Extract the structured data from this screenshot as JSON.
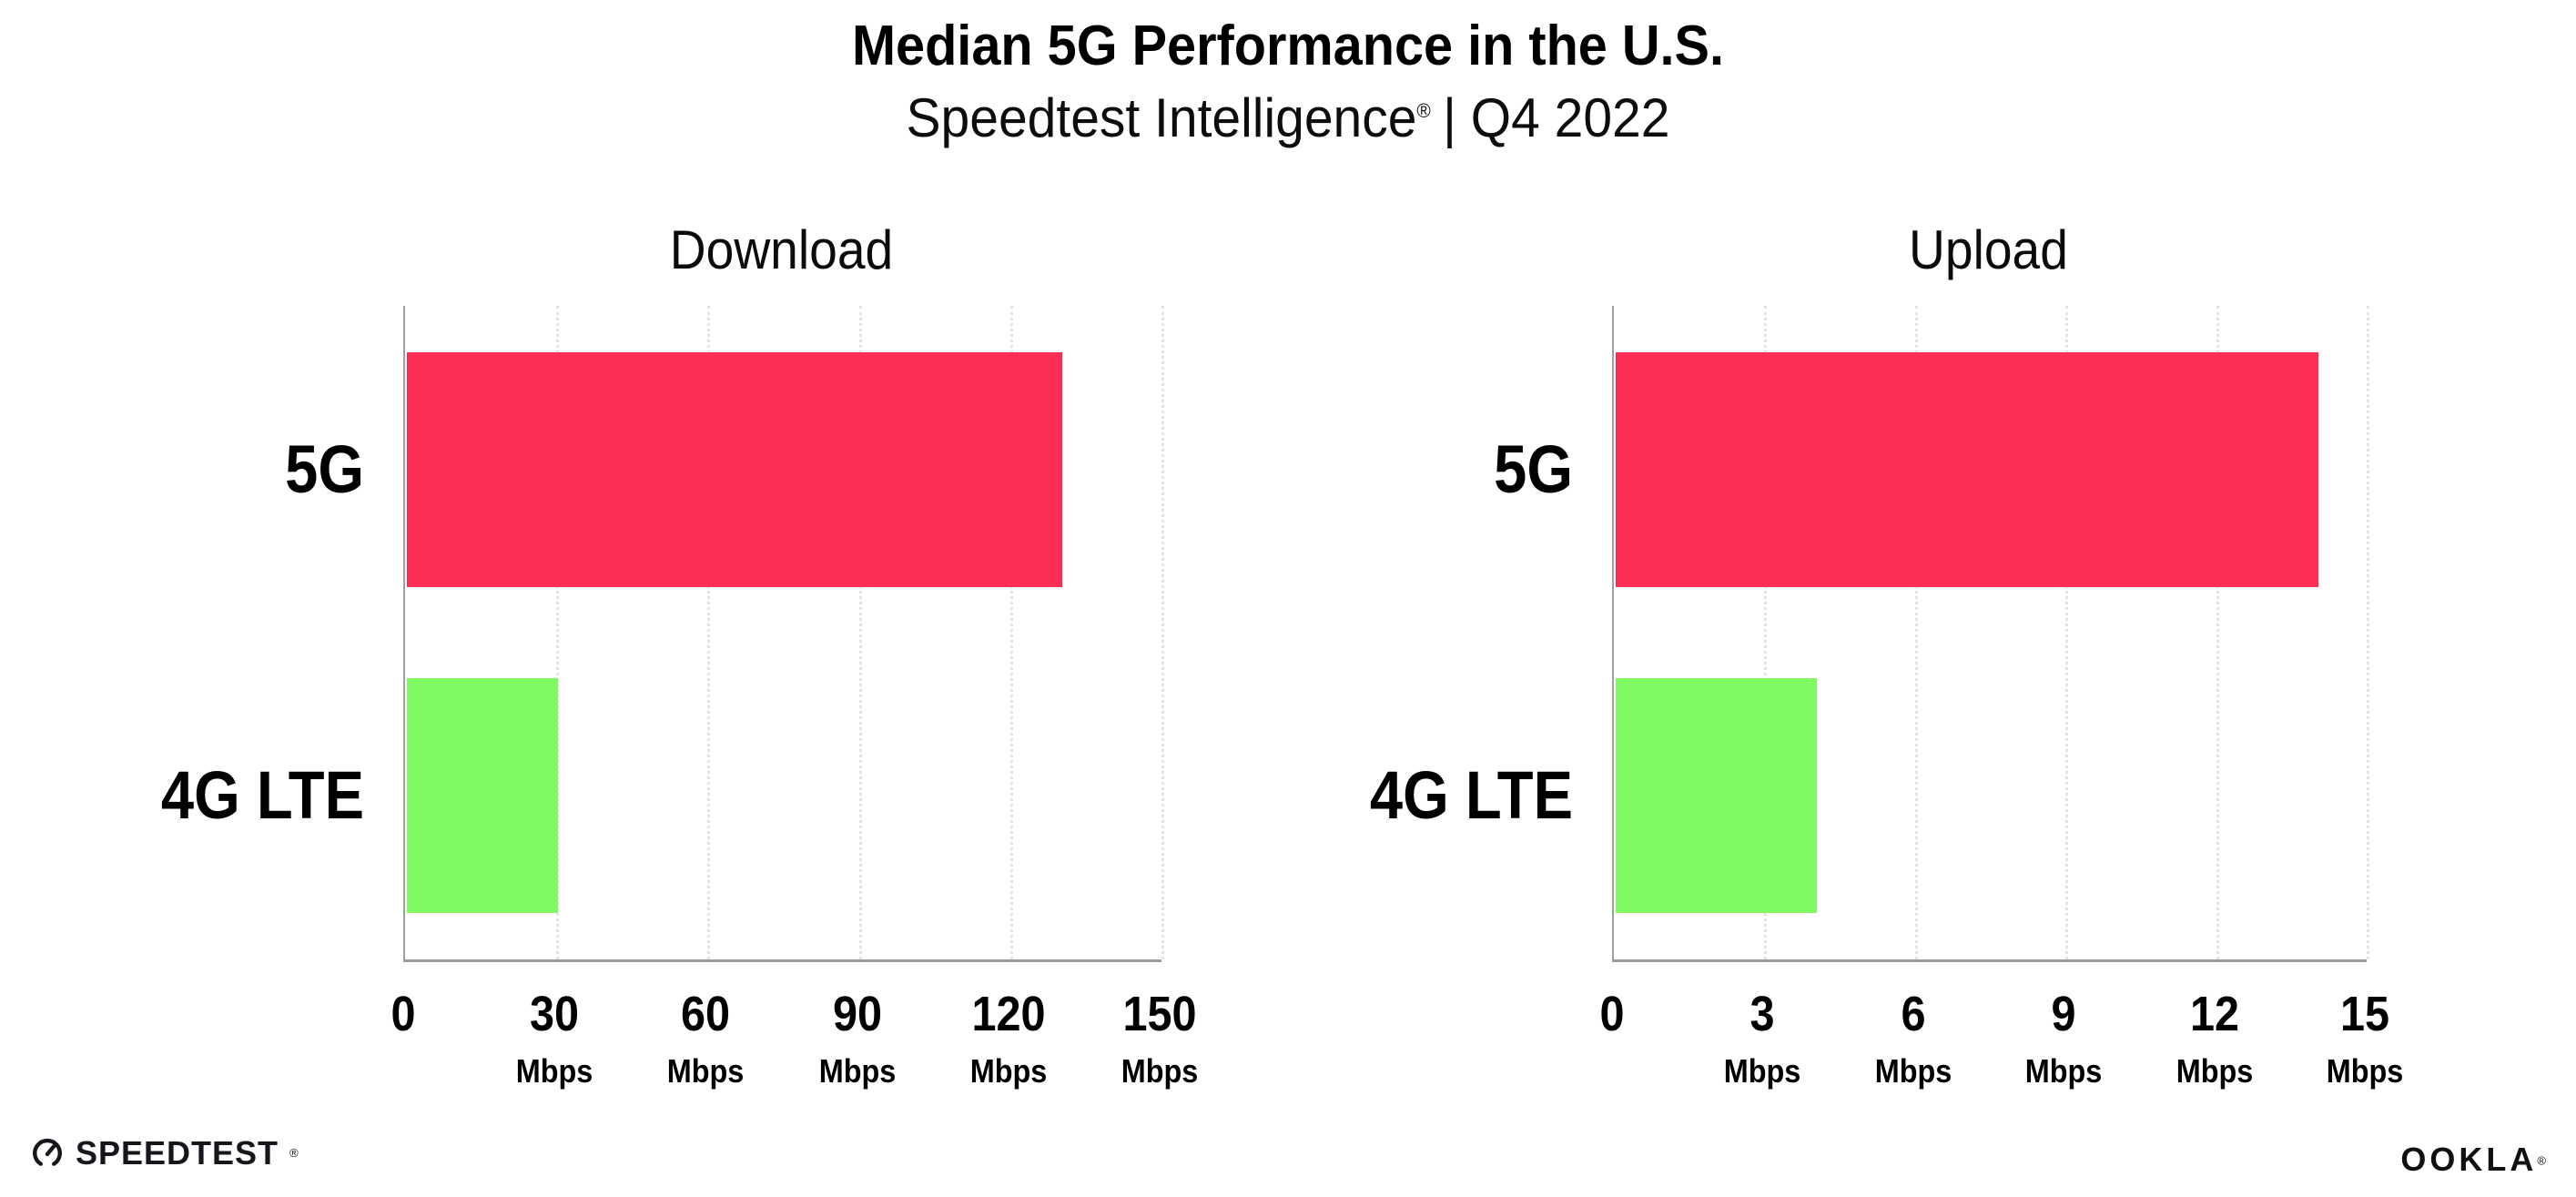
{
  "header": {
    "title": "Median 5G Performance in the U.S.",
    "subtitle": {
      "brand": "Speedtest Intelligence",
      "mark": "®",
      "rest": "| Q4 2022"
    }
  },
  "chart_data": [
    {
      "type": "bar",
      "orientation": "horizontal",
      "title": "Download",
      "categories": [
        "5G",
        "4G LTE"
      ],
      "values": [
        130,
        30
      ],
      "unit": "Mbps",
      "xlim": [
        0,
        150
      ],
      "tick_labels": [
        "0",
        "30",
        "60",
        "90",
        "120",
        "150"
      ],
      "grid": "dotted-vertical",
      "legend": "none",
      "bar_colors": [
        "#fc2e56",
        "#80f963"
      ]
    },
    {
      "type": "bar",
      "orientation": "horizontal",
      "title": "Upload",
      "categories": [
        "5G",
        "4G LTE"
      ],
      "values": [
        14,
        4
      ],
      "unit": "Mbps",
      "xlim": [
        0,
        15
      ],
      "tick_labels": [
        "0",
        "3",
        "6",
        "9",
        "12",
        "15"
      ],
      "grid": "dotted-vertical",
      "legend": "none",
      "bar_colors": [
        "#fc2e56",
        "#80f963"
      ]
    }
  ],
  "footer": {
    "speedtest": {
      "label": "SPEEDTEST",
      "mark": "®"
    },
    "ookla": {
      "label": "OOKLA",
      "mark": "®"
    }
  },
  "colors": {
    "bar_5g": "#fc2e56",
    "bar_4g_lte": "#80f963",
    "axis_line": "#9b9b9b",
    "gridline": "#e2e2ec",
    "text": "#000000"
  }
}
